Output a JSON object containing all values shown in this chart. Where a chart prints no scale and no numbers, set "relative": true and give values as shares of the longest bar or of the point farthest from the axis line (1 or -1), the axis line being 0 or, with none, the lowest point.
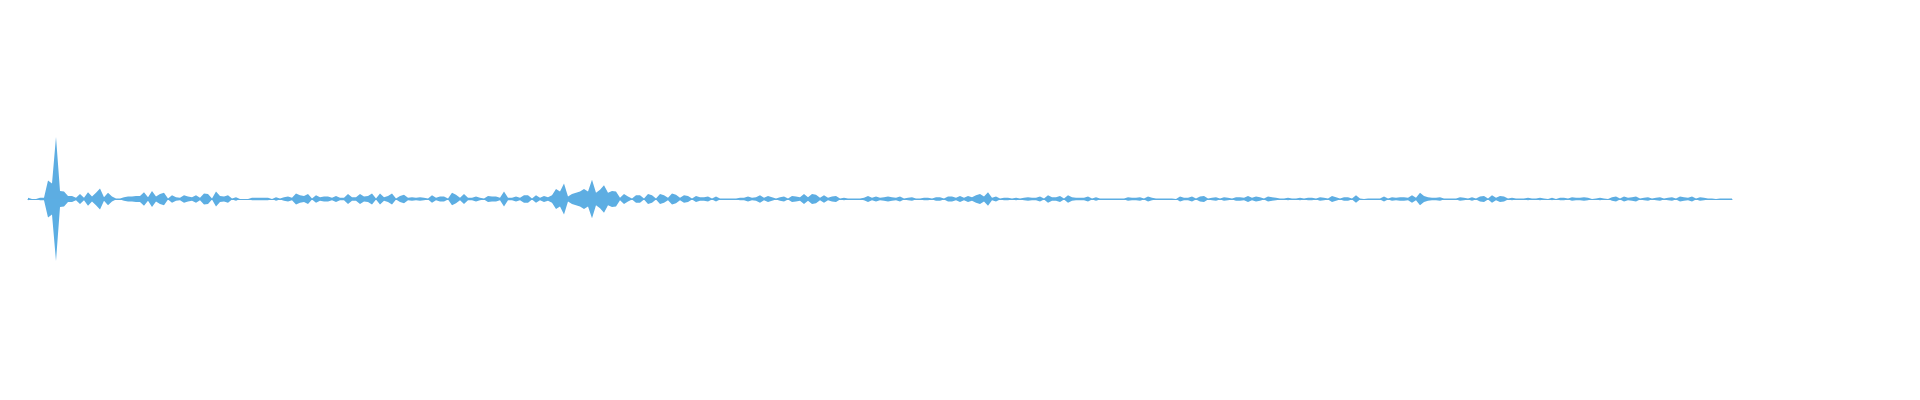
{
  "chart_data": {
    "type": "area",
    "relative": true,
    "grid": false,
    "marker": "none",
    "categories": [
      null,
      null,
      null,
      null,
      null,
      null,
      null,
      null,
      null,
      null,
      null,
      null,
      null,
      null,
      null,
      null,
      null,
      null,
      null,
      null,
      null,
      null,
      null,
      null,
      null,
      null,
      null,
      null,
      null,
      null,
      null,
      null,
      null,
      null,
      null,
      null,
      null,
      null,
      null,
      null,
      null,
      null,
      null,
      null,
      null,
      null,
      null,
      null,
      null,
      null,
      null,
      null,
      null,
      null,
      null,
      null,
      null,
      null,
      null,
      null,
      null,
      null,
      null,
      null,
      null,
      null,
      null,
      null,
      null,
      null,
      null,
      null,
      null,
      null,
      null,
      null,
      null,
      null,
      null,
      null,
      null,
      null,
      null,
      null,
      null,
      null,
      null,
      null,
      null,
      null,
      null,
      null,
      null,
      null,
      null,
      null,
      null,
      null,
      null,
      null,
      null,
      null,
      null,
      null,
      null,
      null,
      null,
      null,
      null,
      null,
      null,
      null,
      null,
      null,
      null,
      null,
      null,
      null,
      null,
      null,
      null,
      null,
      null,
      null,
      null,
      null,
      null,
      null,
      null,
      null,
      null,
      null,
      null,
      null,
      null,
      null,
      null,
      null,
      null,
      null,
      null,
      null,
      null,
      null,
      null,
      null,
      null,
      null,
      null,
      null,
      null,
      null,
      null,
      null,
      null,
      null,
      null,
      null,
      null,
      null,
      null,
      null,
      null,
      null,
      null,
      null,
      null,
      null,
      null,
      null,
      null,
      null,
      null,
      null,
      null,
      null,
      null,
      null,
      null,
      null,
      null,
      null,
      null,
      null,
      null,
      null,
      null,
      null,
      null,
      null,
      null,
      null,
      null,
      null,
      null,
      null,
      null,
      null,
      null,
      null,
      null,
      null,
      null,
      null,
      null,
      null,
      null,
      null,
      null,
      null,
      null,
      null,
      null,
      null,
      null,
      null,
      null,
      null,
      null,
      null,
      null,
      null,
      null,
      null,
      null,
      null,
      null,
      null,
      null,
      null,
      null,
      null,
      null,
      null,
      null,
      null,
      null,
      null,
      null,
      null,
      null,
      null,
      null,
      null,
      null,
      null,
      null,
      null,
      null,
      null,
      null,
      null,
      null,
      null,
      null,
      null,
      null,
      null,
      null,
      null,
      null,
      null,
      null,
      null,
      null,
      null,
      null,
      null,
      null,
      null,
      null,
      null,
      null,
      null,
      null,
      null,
      null,
      null,
      null,
      null,
      null,
      null,
      null,
      null,
      null,
      null,
      null,
      null,
      null,
      null,
      null,
      null,
      null,
      null,
      null,
      null,
      null,
      null,
      null,
      null,
      null,
      null,
      null,
      null,
      null,
      null,
      null,
      null,
      null,
      null,
      null,
      null,
      null,
      null,
      null,
      null,
      null,
      null,
      null,
      null,
      null,
      null,
      null,
      null,
      null,
      null,
      null,
      null,
      null,
      null,
      null,
      null,
      null,
      null,
      null,
      null,
      null,
      null,
      null,
      null,
      null,
      null,
      null,
      null,
      null,
      null,
      null,
      null,
      null,
      null,
      null,
      null,
      null,
      null,
      null,
      null,
      null,
      null,
      null,
      null,
      null,
      null,
      null,
      null,
      null,
      null,
      null,
      null,
      null,
      null,
      null,
      null,
      null,
      null,
      null,
      null,
      null,
      null,
      null,
      null,
      null,
      null,
      null,
      null,
      null,
      null,
      null,
      null,
      null,
      null,
      null,
      null,
      null,
      null,
      null,
      null,
      null,
      null,
      null,
      null,
      null,
      null,
      null,
      null,
      null,
      null,
      null,
      null,
      null,
      null,
      null,
      null,
      null,
      null,
      null,
      null,
      null,
      null,
      null,
      null,
      null,
      null,
      null,
      null,
      null,
      null,
      null
    ],
    "series": [
      {
        "color": "#5dade2",
        "values": [
          0.02,
          0,
          0,
          0.02,
          0.02,
          0.3,
          0.25,
          1,
          0.13,
          0.12,
          0.05,
          0.05,
          0.02,
          0.08,
          0.02,
          0.11,
          0.04,
          0.1,
          0.17,
          0.03,
          0.1,
          0.04,
          0.01,
          0.01,
          0.03,
          0.04,
          0.04,
          0.05,
          0.05,
          0.11,
          0.03,
          0.13,
          0.04,
          0.08,
          0.1,
          0.01,
          0.06,
          0.03,
          0.02,
          0.06,
          0.04,
          0.03,
          0.06,
          0.02,
          0.09,
          0.08,
          0.01,
          0.12,
          0.05,
          0.04,
          0.06,
          0.01,
          0.03,
          0,
          0,
          0,
          0.02,
          0.02,
          0.02,
          0.02,
          0.02,
          0,
          0.03,
          0.01,
          0.03,
          0.04,
          0.02,
          0.09,
          0.06,
          0.05,
          0.08,
          0.01,
          0.06,
          0.03,
          0.04,
          0.04,
          0.02,
          0.05,
          0.02,
          0.02,
          0.08,
          0.03,
          0.03,
          0.08,
          0.04,
          0.05,
          0.09,
          0.01,
          0.09,
          0.03,
          0.05,
          0.09,
          0.01,
          0.05,
          0.07,
          0.02,
          0.03,
          0.02,
          0.03,
          0.02,
          0.01,
          0.06,
          0.02,
          0.04,
          0.04,
          0.01,
          0.1,
          0.07,
          0.02,
          0.08,
          0.02,
          0.02,
          0.04,
          0.02,
          0.01,
          0.05,
          0.04,
          0.04,
          0.02,
          0.12,
          0.02,
          0.02,
          0.04,
          0.02,
          0.06,
          0.06,
          0.01,
          0.06,
          0.02,
          0.05,
          0.03,
          0.06,
          0.16,
          0.12,
          0.25,
          0.04,
          0.08,
          0.1,
          0.12,
          0.16,
          0.12,
          0.31,
          0.1,
          0.15,
          0.22,
          0.1,
          0.13,
          0.12,
          0.02,
          0.08,
          0.04,
          0.01,
          0.06,
          0.06,
          0.01,
          0.08,
          0.06,
          0.01,
          0.08,
          0.06,
          0.02,
          0.09,
          0.07,
          0.02,
          0.06,
          0.05,
          0.01,
          0.05,
          0.03,
          0.03,
          0.04,
          0.01,
          0.04,
          0.01,
          0.01,
          0.01,
          0.01,
          0.01,
          0.02,
          0.02,
          0.04,
          0.02,
          0.03,
          0.06,
          0.02,
          0.05,
          0.03,
          0.01,
          0.03,
          0.04,
          0.01,
          0.05,
          0.04,
          0.03,
          0.08,
          0.03,
          0.08,
          0.07,
          0.02,
          0.06,
          0.02,
          0.04,
          0.05,
          0.01,
          0.02,
          0.01,
          0.01,
          0.01,
          0.01,
          0.02,
          0.05,
          0.02,
          0.04,
          0.02,
          0.03,
          0.04,
          0.03,
          0.02,
          0.04,
          0.01,
          0.02,
          0.03,
          0.01,
          0.01,
          0.02,
          0.02,
          0.01,
          0.03,
          0.03,
          0.01,
          0.04,
          0.04,
          0.02,
          0.05,
          0.02,
          0.05,
          0.03,
          0.06,
          0.08,
          0.04,
          0.11,
          0.02,
          0.04,
          0.01,
          0.02,
          0.02,
          0.01,
          0.02,
          0.01,
          0.02,
          0.03,
          0.02,
          0.02,
          0.04,
          0.01,
          0.06,
          0.03,
          0.03,
          0.05,
          0.01,
          0.06,
          0.03,
          0.02,
          0.02,
          0.02,
          0.04,
          0.01,
          0.03,
          0.01,
          0.01,
          0.01,
          0.01,
          0.01,
          0.01,
          0.01,
          0.03,
          0.02,
          0.02,
          0.03,
          0.01,
          0.04,
          0.02,
          0.01,
          0.01,
          0.01,
          0.01,
          0.01,
          0,
          0.04,
          0.02,
          0.02,
          0.04,
          0.01,
          0.04,
          0.05,
          0.01,
          0.02,
          0.03,
          0.01,
          0.03,
          0.02,
          0.01,
          0.03,
          0.03,
          0.02,
          0.05,
          0.02,
          0.04,
          0.03,
          0.01,
          0.04,
          0.03,
          0.02,
          0.01,
          0.01,
          0.02,
          0.01,
          0.01,
          0.02,
          0.01,
          0.02,
          0.02,
          0.01,
          0.03,
          0.02,
          0.01,
          0.05,
          0.03,
          0.01,
          0.03,
          0.03,
          0.01,
          0.06,
          0.01,
          0,
          0.01,
          0.01,
          0.01,
          0.01,
          0.04,
          0.01,
          0.03,
          0.02,
          0.03,
          0.03,
          0.02,
          0.06,
          0.02,
          0.1,
          0.05,
          0.03,
          0.02,
          0.02,
          0.03,
          0.01,
          0.01,
          0.01,
          0.01,
          0.03,
          0.02,
          0.01,
          0.03,
          0.01,
          0.04,
          0.05,
          0.01,
          0.06,
          0.02,
          0.05,
          0.04,
          0.01,
          0.02,
          0.01,
          0.01,
          0.01,
          0.02,
          0.01,
          0.01,
          0.02,
          0.01,
          0,
          0.02,
          0,
          0.02,
          0.02,
          0.01,
          0.03,
          0.02,
          0.02,
          0.03,
          0.02,
          0,
          0.01,
          0.02,
          0.01,
          0,
          0.03,
          0.04,
          0.01,
          0.04,
          0.02,
          0.03,
          0.04,
          0.01,
          0.02,
          0.03,
          0.01,
          0.02,
          0.03,
          0.01,
          0.02,
          0.03,
          0.01,
          0.04,
          0.03,
          0.02,
          0.04,
          0.01,
          0.03,
          0.02,
          0.01,
          0.01,
          0,
          0.01,
          0.01,
          0.01,
          0.01
        ]
      },
      {
        "color": "#5caee3",
        "values": [
          -0.02,
          0,
          0,
          -0.02,
          -0.02,
          -0.3,
          -0.25,
          -1,
          -0.13,
          -0.12,
          -0.05,
          -0.05,
          -0.02,
          -0.08,
          -0.02,
          -0.11,
          -0.04,
          -0.1,
          -0.17,
          -0.03,
          -0.1,
          -0.04,
          -0.01,
          -0.01,
          -0.03,
          -0.04,
          -0.04,
          -0.05,
          -0.05,
          -0.11,
          -0.03,
          -0.13,
          -0.04,
          -0.08,
          -0.1,
          -0.01,
          -0.06,
          -0.03,
          -0.02,
          -0.06,
          -0.04,
          -0.03,
          -0.06,
          -0.02,
          -0.09,
          -0.08,
          -0.01,
          -0.12,
          -0.05,
          -0.04,
          -0.06,
          -0.01,
          -0.03,
          0,
          0,
          0,
          -0.02,
          -0.02,
          -0.02,
          -0.02,
          -0.02,
          0,
          -0.03,
          -0.01,
          -0.03,
          -0.04,
          -0.02,
          -0.09,
          -0.06,
          -0.05,
          -0.08,
          -0.01,
          -0.06,
          -0.03,
          -0.04,
          -0.04,
          -0.02,
          -0.05,
          -0.02,
          -0.02,
          -0.08,
          -0.03,
          -0.03,
          -0.08,
          -0.04,
          -0.05,
          -0.09,
          -0.01,
          -0.09,
          -0.03,
          -0.05,
          -0.09,
          -0.01,
          -0.05,
          -0.07,
          -0.02,
          -0.03,
          -0.02,
          -0.03,
          -0.02,
          -0.01,
          -0.06,
          -0.02,
          -0.04,
          -0.04,
          -0.01,
          -0.1,
          -0.07,
          -0.02,
          -0.08,
          -0.02,
          -0.02,
          -0.04,
          -0.02,
          -0.01,
          -0.05,
          -0.04,
          -0.04,
          -0.02,
          -0.12,
          -0.02,
          -0.02,
          -0.04,
          -0.02,
          -0.06,
          -0.06,
          -0.01,
          -0.06,
          -0.02,
          -0.05,
          -0.03,
          -0.06,
          -0.16,
          -0.12,
          -0.25,
          -0.04,
          -0.08,
          -0.1,
          -0.12,
          -0.16,
          -0.12,
          -0.31,
          -0.1,
          -0.15,
          -0.22,
          -0.1,
          -0.13,
          -0.12,
          -0.02,
          -0.08,
          -0.04,
          -0.01,
          -0.06,
          -0.06,
          -0.01,
          -0.08,
          -0.06,
          -0.01,
          -0.08,
          -0.06,
          -0.02,
          -0.09,
          -0.07,
          -0.02,
          -0.06,
          -0.05,
          -0.01,
          -0.05,
          -0.03,
          -0.03,
          -0.04,
          -0.01,
          -0.04,
          -0.01,
          -0.01,
          -0.01,
          -0.01,
          -0.01,
          -0.02,
          -0.02,
          -0.04,
          -0.02,
          -0.03,
          -0.06,
          -0.02,
          -0.05,
          -0.03,
          -0.01,
          -0.03,
          -0.04,
          -0.01,
          -0.05,
          -0.04,
          -0.03,
          -0.08,
          -0.03,
          -0.08,
          -0.07,
          -0.02,
          -0.06,
          -0.02,
          -0.04,
          -0.05,
          -0.01,
          -0.02,
          -0.01,
          -0.01,
          -0.01,
          -0.01,
          -0.02,
          -0.05,
          -0.02,
          -0.04,
          -0.02,
          -0.03,
          -0.04,
          -0.03,
          -0.02,
          -0.04,
          -0.01,
          -0.02,
          -0.03,
          -0.01,
          -0.01,
          -0.02,
          -0.02,
          -0.01,
          -0.03,
          -0.03,
          -0.01,
          -0.04,
          -0.04,
          -0.02,
          -0.05,
          -0.02,
          -0.05,
          -0.03,
          -0.06,
          -0.08,
          -0.04,
          -0.11,
          -0.02,
          -0.04,
          -0.01,
          -0.02,
          -0.02,
          -0.01,
          -0.02,
          -0.01,
          -0.02,
          -0.03,
          -0.02,
          -0.02,
          -0.04,
          -0.01,
          -0.06,
          -0.03,
          -0.03,
          -0.05,
          -0.01,
          -0.06,
          -0.03,
          -0.02,
          -0.02,
          -0.02,
          -0.04,
          -0.01,
          -0.03,
          -0.01,
          -0.01,
          -0.01,
          -0.01,
          -0.01,
          -0.01,
          -0.01,
          -0.03,
          -0.02,
          -0.02,
          -0.03,
          -0.01,
          -0.04,
          -0.02,
          -0.01,
          -0.01,
          -0.01,
          -0.01,
          -0.01,
          0,
          -0.04,
          -0.02,
          -0.02,
          -0.04,
          -0.01,
          -0.04,
          -0.05,
          -0.01,
          -0.02,
          -0.03,
          -0.01,
          -0.03,
          -0.02,
          -0.01,
          -0.03,
          -0.03,
          -0.02,
          -0.05,
          -0.02,
          -0.04,
          -0.03,
          -0.01,
          -0.04,
          -0.03,
          -0.02,
          -0.01,
          -0.01,
          -0.02,
          -0.01,
          -0.01,
          -0.02,
          -0.01,
          -0.02,
          -0.02,
          -0.01,
          -0.03,
          -0.02,
          -0.01,
          -0.05,
          -0.03,
          -0.01,
          -0.03,
          -0.03,
          -0.01,
          -0.06,
          -0.01,
          0,
          -0.01,
          -0.01,
          -0.01,
          -0.01,
          -0.04,
          -0.01,
          -0.03,
          -0.02,
          -0.03,
          -0.03,
          -0.02,
          -0.06,
          -0.02,
          -0.1,
          -0.05,
          -0.03,
          -0.02,
          -0.02,
          -0.03,
          -0.01,
          -0.01,
          -0.01,
          -0.01,
          -0.03,
          -0.02,
          -0.01,
          -0.03,
          -0.01,
          -0.04,
          -0.05,
          -0.01,
          -0.06,
          -0.02,
          -0.05,
          -0.04,
          -0.01,
          -0.02,
          -0.01,
          -0.01,
          -0.01,
          -0.02,
          -0.01,
          -0.01,
          -0.02,
          -0.01,
          0,
          -0.02,
          0,
          -0.02,
          -0.02,
          -0.01,
          -0.03,
          -0.02,
          -0.02,
          -0.03,
          -0.02,
          0,
          -0.01,
          -0.02,
          -0.01,
          0,
          -0.03,
          -0.04,
          -0.01,
          -0.04,
          -0.02,
          -0.03,
          -0.04,
          -0.01,
          -0.02,
          -0.03,
          -0.01,
          -0.02,
          -0.03,
          -0.01,
          -0.02,
          -0.03,
          -0.01,
          -0.04,
          -0.03,
          -0.02,
          -0.04,
          -0.01,
          -0.03,
          -0.02,
          -0.01,
          -0.01,
          0,
          -0.01,
          -0.01,
          -0.01,
          -0.01
        ]
      }
    ]
  }
}
